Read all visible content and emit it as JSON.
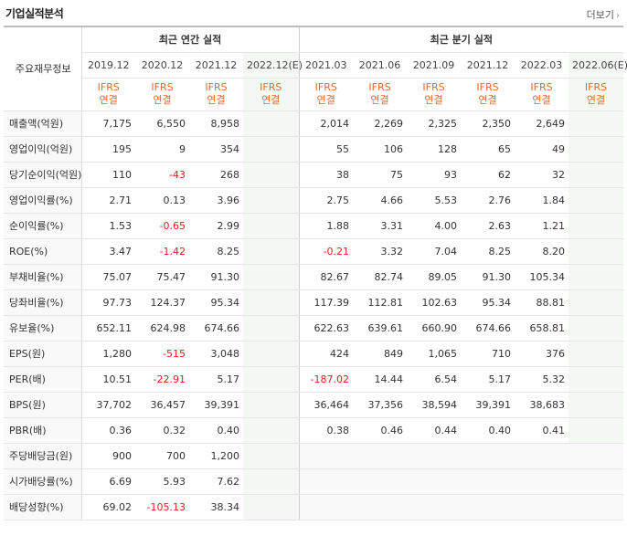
{
  "header": {
    "title": "기업실적분석",
    "more_label": "더보기",
    "more_icon": "chevron-right-icon"
  },
  "table": {
    "corner_label": "주요재무정보",
    "annual_group": "최근 연간 실적",
    "quarter_group": "최근 분기 실적",
    "annual_periods": [
      "2019.12",
      "2020.12",
      "2021.12",
      "2022.12(E)"
    ],
    "quarter_periods": [
      "2021.03",
      "2021.06",
      "2021.09",
      "2021.12",
      "2022.03",
      "2022.06(E)"
    ],
    "standard_top": "IFRS",
    "standard_bottom": "연결",
    "rows": [
      {
        "label": "매출액(억원)",
        "annual": [
          "7,175",
          "6,550",
          "8,958",
          ""
        ],
        "quarter": [
          "2,014",
          "2,269",
          "2,325",
          "2,350",
          "2,649",
          ""
        ]
      },
      {
        "label": "영업이익(억원)",
        "annual": [
          "195",
          "9",
          "354",
          ""
        ],
        "quarter": [
          "55",
          "106",
          "128",
          "65",
          "49",
          ""
        ]
      },
      {
        "label": "당기순이익(억원)",
        "annual": [
          "110",
          "-43",
          "268",
          ""
        ],
        "quarter": [
          "38",
          "75",
          "93",
          "62",
          "32",
          ""
        ]
      },
      {
        "label": "영업이익률(%)",
        "annual": [
          "2.71",
          "0.13",
          "3.96",
          ""
        ],
        "quarter": [
          "2.75",
          "4.66",
          "5.53",
          "2.76",
          "1.84",
          ""
        ]
      },
      {
        "label": "순이익률(%)",
        "annual": [
          "1.53",
          "-0.65",
          "2.99",
          ""
        ],
        "quarter": [
          "1.88",
          "3.31",
          "4.00",
          "2.63",
          "1.21",
          ""
        ]
      },
      {
        "label": "ROE(%)",
        "annual": [
          "3.47",
          "-1.42",
          "8.25",
          ""
        ],
        "quarter": [
          "-0.21",
          "3.32",
          "7.04",
          "8.25",
          "8.20",
          ""
        ]
      },
      {
        "label": "부채비율(%)",
        "annual": [
          "75.07",
          "75.47",
          "91.30",
          ""
        ],
        "quarter": [
          "82.67",
          "82.74",
          "89.05",
          "91.30",
          "105.34",
          ""
        ]
      },
      {
        "label": "당좌비율(%)",
        "annual": [
          "97.73",
          "124.37",
          "95.34",
          ""
        ],
        "quarter": [
          "117.39",
          "112.81",
          "102.63",
          "95.34",
          "88.81",
          ""
        ]
      },
      {
        "label": "유보율(%)",
        "annual": [
          "652.11",
          "624.98",
          "674.66",
          ""
        ],
        "quarter": [
          "622.63",
          "639.61",
          "660.90",
          "674.66",
          "658.81",
          ""
        ]
      },
      {
        "label": "EPS(원)",
        "annual": [
          "1,280",
          "-515",
          "3,048",
          ""
        ],
        "quarter": [
          "424",
          "849",
          "1,065",
          "710",
          "376",
          ""
        ]
      },
      {
        "label": "PER(배)",
        "annual": [
          "10.51",
          "-22.91",
          "5.17",
          ""
        ],
        "quarter": [
          "-187.02",
          "14.44",
          "6.54",
          "5.17",
          "5.32",
          ""
        ]
      },
      {
        "label": "BPS(원)",
        "annual": [
          "37,702",
          "36,457",
          "39,391",
          ""
        ],
        "quarter": [
          "36,464",
          "37,356",
          "38,594",
          "39,391",
          "38,683",
          ""
        ]
      },
      {
        "label": "PBR(배)",
        "annual": [
          "0.36",
          "0.32",
          "0.40",
          ""
        ],
        "quarter": [
          "0.38",
          "0.46",
          "0.44",
          "0.40",
          "0.41",
          ""
        ]
      },
      {
        "label": "주당배당금(원)",
        "annual": [
          "900",
          "700",
          "1,200",
          ""
        ],
        "quarter": null
      },
      {
        "label": "시가배당률(%)",
        "annual": [
          "6.69",
          "5.93",
          "7.62",
          ""
        ],
        "quarter": null
      },
      {
        "label": "배당성향(%)",
        "annual": [
          "69.02",
          "-105.13",
          "38.34",
          ""
        ],
        "quarter": null
      }
    ],
    "group_breaks": [
      3,
      6,
      9,
      13
    ]
  }
}
